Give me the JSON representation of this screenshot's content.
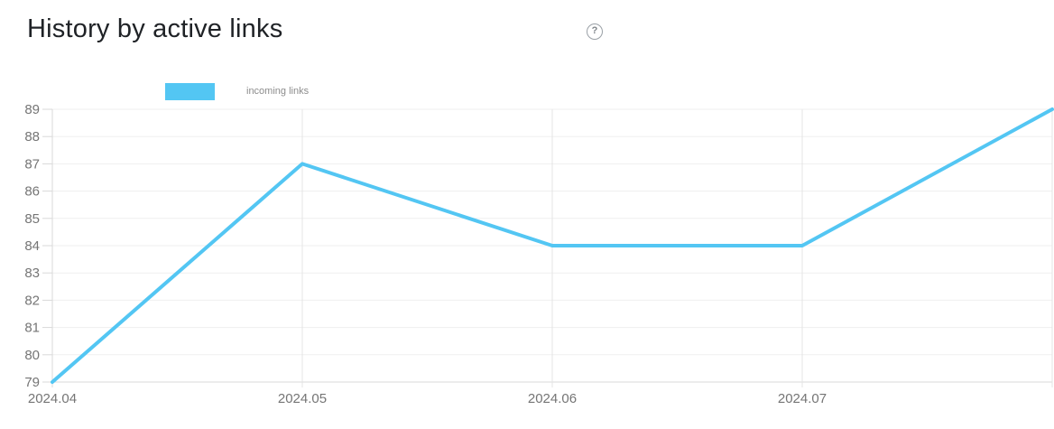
{
  "header": {
    "title": "History by active links",
    "help_glyph": "?"
  },
  "legend": {
    "label": "incoming links"
  },
  "colors": {
    "accent_blue": "#53c6f3",
    "title_text": "#1f2226",
    "axis_label": "#757575",
    "grid_horizontal": "#efefef",
    "grid_vertical": "#e4e4e4",
    "axis_line": "#d9d9d9",
    "legend_label": "#8c8c8c"
  },
  "chart_data": {
    "type": "line",
    "title": "History by active links",
    "xlabel": "",
    "ylabel": "",
    "x_tick_labels": [
      "2024.04",
      "2024.05",
      "2024.06",
      "2024.07"
    ],
    "y_ticks": [
      89,
      88,
      87,
      86,
      85,
      84,
      83,
      82,
      81,
      80,
      79
    ],
    "ylim": [
      79,
      89
    ],
    "grid": true,
    "legend_position": "top-left",
    "series": [
      {
        "name": "incoming links",
        "color": "#53c6f3",
        "values": [
          79,
          87,
          84,
          84,
          89
        ],
        "note_first_four_points_align_with_x_tick_labels": true
      }
    ]
  }
}
